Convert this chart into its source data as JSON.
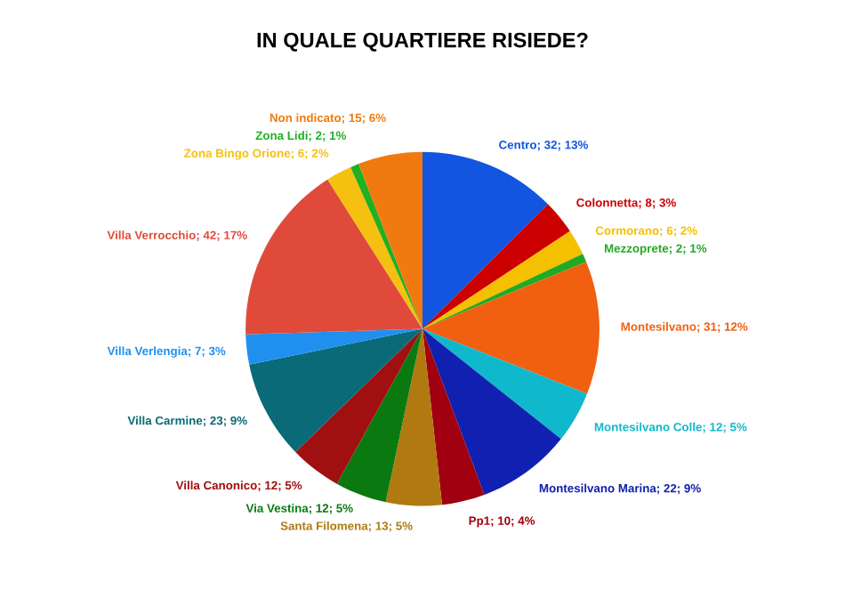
{
  "chart_data": {
    "type": "pie",
    "title": "IN QUALE QUARTIERE RISIEDE?",
    "categories": [
      "Centro",
      "Colonnetta",
      "Cormorano",
      "Mezzoprete",
      "Montesilvano",
      "Montesilvano Colle",
      "Montesilvano Marina",
      "Pp1",
      "Santa Filomena",
      "Via Vestina",
      "Villa Canonico",
      "Villa Carmine",
      "Villa Verlengia",
      "Villa Verrocchio",
      "Zona Bingo Orione",
      "Zona Lidi",
      "Non indicato"
    ],
    "values": [
      32,
      8,
      6,
      2,
      31,
      12,
      22,
      10,
      13,
      12,
      12,
      23,
      7,
      42,
      6,
      2,
      15
    ],
    "value_labels": [
      "32; 13%",
      "8; 3%",
      "6; 2%",
      "2; 1%",
      "31; 12%",
      "12; 5%",
      "22; 9%",
      "10; 4%",
      "13; 5%",
      "12; 5%",
      "12; 5%",
      "23; 9%",
      "7; 3%",
      "42; 17%",
      "6; 2%",
      "2; 1%",
      "15; 6%"
    ],
    "colors": [
      "#1155e0",
      "#cc0000",
      "#f5c000",
      "#22aa22",
      "#f06010",
      "#10b8cc",
      "#1020b0",
      "#a00010",
      "#b07a10",
      "#0a7a10",
      "#a01010",
      "#0a6a78",
      "#2090f0",
      "#e04a3a",
      "#f5c010",
      "#20b020",
      "#f07a10"
    ],
    "legend": false
  }
}
